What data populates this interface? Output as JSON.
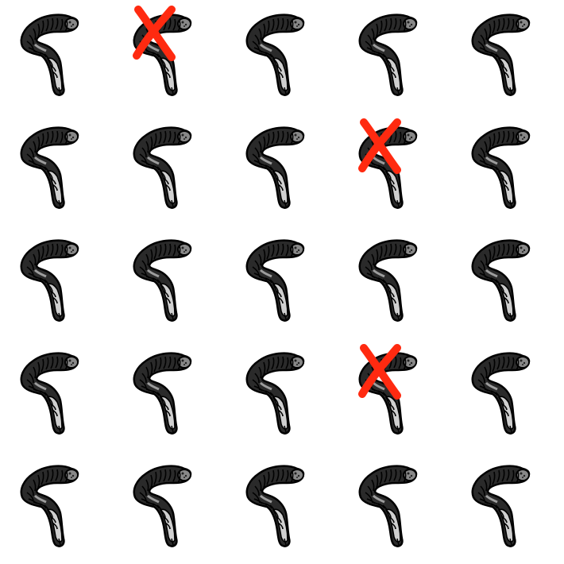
{
  "grid": {
    "rows": 5,
    "columns": 5,
    "item_icon": "grub-worm-icon",
    "marker_icon": "red-x-mark-icon",
    "marker_color": "#ff2a10",
    "worm_colors": {
      "body": "#2a2a2a",
      "belly": "#cfcfcf",
      "outline": "#000000"
    },
    "crossed_cells": [
      {
        "row": 1,
        "column": 2
      },
      {
        "row": 2,
        "column": 4
      },
      {
        "row": 4,
        "column": 4
      }
    ]
  }
}
